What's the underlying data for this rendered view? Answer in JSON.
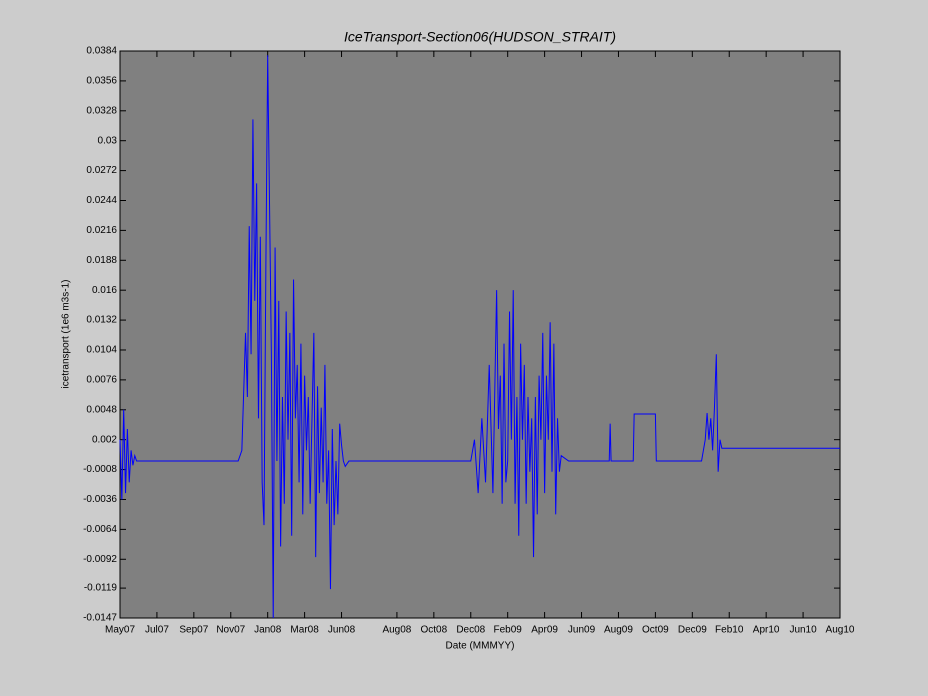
{
  "chart_data": {
    "type": "line",
    "title": "IceTransport-Section06(HUDSON_STRAIT)",
    "xlabel": "Date (MMMYY)",
    "ylabel": "icetransport (1e6 m3s-1)",
    "color": "#0000ff",
    "xlim": [
      0,
      39
    ],
    "xticks": [
      {
        "value": 0,
        "label": "May07"
      },
      {
        "value": 2,
        "label": "Jul07"
      },
      {
        "value": 4,
        "label": "Sep07"
      },
      {
        "value": 6,
        "label": "Nov07"
      },
      {
        "value": 8,
        "label": "Jan08"
      },
      {
        "value": 10,
        "label": "Mar08"
      },
      {
        "value": 12,
        "label": "Jun08"
      },
      {
        "value": 15,
        "label": "Aug08"
      },
      {
        "value": 17,
        "label": "Oct08"
      },
      {
        "value": 19,
        "label": "Dec08"
      },
      {
        "value": 21,
        "label": "Feb09"
      },
      {
        "value": 23,
        "label": "Apr09"
      },
      {
        "value": 25,
        "label": "Jun09"
      },
      {
        "value": 27,
        "label": "Aug09"
      },
      {
        "value": 29,
        "label": "Oct09"
      },
      {
        "value": 31,
        "label": "Dec09"
      },
      {
        "value": 33,
        "label": "Feb10"
      },
      {
        "value": 35,
        "label": "Apr10"
      },
      {
        "value": 37,
        "label": "Jun10"
      },
      {
        "value": 39,
        "label": "Aug10"
      }
    ],
    "ylim": [
      -0.0147,
      0.0384
    ],
    "yticks": [
      0.0384,
      0.0356,
      0.0328,
      0.03,
      0.0272,
      0.0244,
      0.0216,
      0.0188,
      0.016,
      0.0132,
      0.0104,
      0.0076,
      0.0048,
      0.002,
      -0.0008,
      -0.0036,
      -0.0064,
      -0.0092,
      -0.0119,
      -0.0147
    ],
    "x": [
      0,
      0.1,
      0.2,
      0.3,
      0.4,
      0.5,
      0.6,
      0.7,
      0.8,
      0.9,
      6.4,
      6.6,
      6.8,
      6.9,
      7.0,
      7.1,
      7.2,
      7.3,
      7.4,
      7.5,
      7.6,
      7.7,
      7.8,
      7.9,
      8.0,
      8.1,
      8.2,
      8.3,
      8.4,
      8.5,
      8.6,
      8.7,
      8.8,
      8.9,
      9.0,
      9.1,
      9.2,
      9.3,
      9.4,
      9.5,
      9.6,
      9.7,
      9.8,
      9.9,
      10.0,
      10.1,
      10.2,
      10.3,
      10.5,
      10.6,
      10.7,
      10.8,
      10.9,
      11.0,
      11.1,
      11.2,
      11.3,
      11.4,
      11.5,
      11.6,
      11.7,
      11.8,
      11.9,
      12.0,
      12.1,
      12.2,
      12.4,
      19.0,
      19.2,
      19.4,
      19.6,
      19.8,
      20.0,
      20.2,
      20.4,
      20.5,
      20.6,
      20.7,
      20.8,
      20.9,
      21.0,
      21.1,
      21.2,
      21.3,
      21.4,
      21.5,
      21.6,
      21.7,
      21.8,
      21.9,
      22.0,
      22.1,
      22.2,
      22.3,
      22.4,
      22.5,
      22.6,
      22.7,
      22.8,
      22.9,
      23.0,
      23.1,
      23.2,
      23.3,
      23.4,
      23.5,
      23.6,
      23.7,
      23.8,
      23.9,
      24.3,
      26.5,
      26.55,
      26.6,
      27.8,
      27.85,
      29.0,
      29.05,
      31.5,
      31.7,
      31.8,
      31.9,
      32.0,
      32.1,
      32.2,
      32.3,
      32.4,
      32.5,
      32.6,
      39
    ],
    "values": [
      0.002,
      -0.0036,
      0.0048,
      -0.003,
      0.003,
      -0.002,
      0.001,
      -0.0004,
      0.0005,
      0,
      0,
      0.001,
      0.012,
      0.006,
      0.022,
      0.01,
      0.032,
      0.015,
      0.026,
      0.004,
      0.021,
      -0.002,
      -0.006,
      0.018,
      0.038,
      0.024,
      0.01,
      -0.0147,
      0.02,
      0,
      0.015,
      -0.008,
      0.006,
      -0.004,
      0.014,
      0.002,
      0.012,
      -0.007,
      0.017,
      0.004,
      0.009,
      -0.002,
      0.011,
      -0.005,
      0.008,
      0.001,
      0.006,
      -0.004,
      0.012,
      -0.009,
      0.007,
      -0.003,
      0.005,
      -0.002,
      0.009,
      -0.004,
      0.001,
      -0.012,
      0.003,
      -0.006,
      0,
      -0.005,
      0.0035,
      0.0015,
      0,
      -0.0005,
      0,
      0,
      0.002,
      -0.003,
      0.004,
      -0.002,
      0.009,
      -0.003,
      0.016,
      0.003,
      0.008,
      -0.004,
      0.011,
      -0.002,
      0,
      0.014,
      0.002,
      0.016,
      -0.004,
      0.006,
      -0.007,
      0.011,
      0.002,
      0.009,
      -0.004,
      0.006,
      -0.001,
      0.004,
      -0.009,
      0.006,
      -0.005,
      0.008,
      0.002,
      0.012,
      -0.003,
      0.008,
      0.002,
      0.013,
      -0.001,
      0.011,
      -0.005,
      0.004,
      -0.001,
      0.0005,
      0,
      0,
      0.0035,
      0,
      0,
      0.0044,
      0.0044,
      0,
      0,
      0.002,
      0.0045,
      0.002,
      0.004,
      0.001,
      0.005,
      0.01,
      -0.001,
      0.002,
      0.0012,
      0.0012
    ]
  }
}
